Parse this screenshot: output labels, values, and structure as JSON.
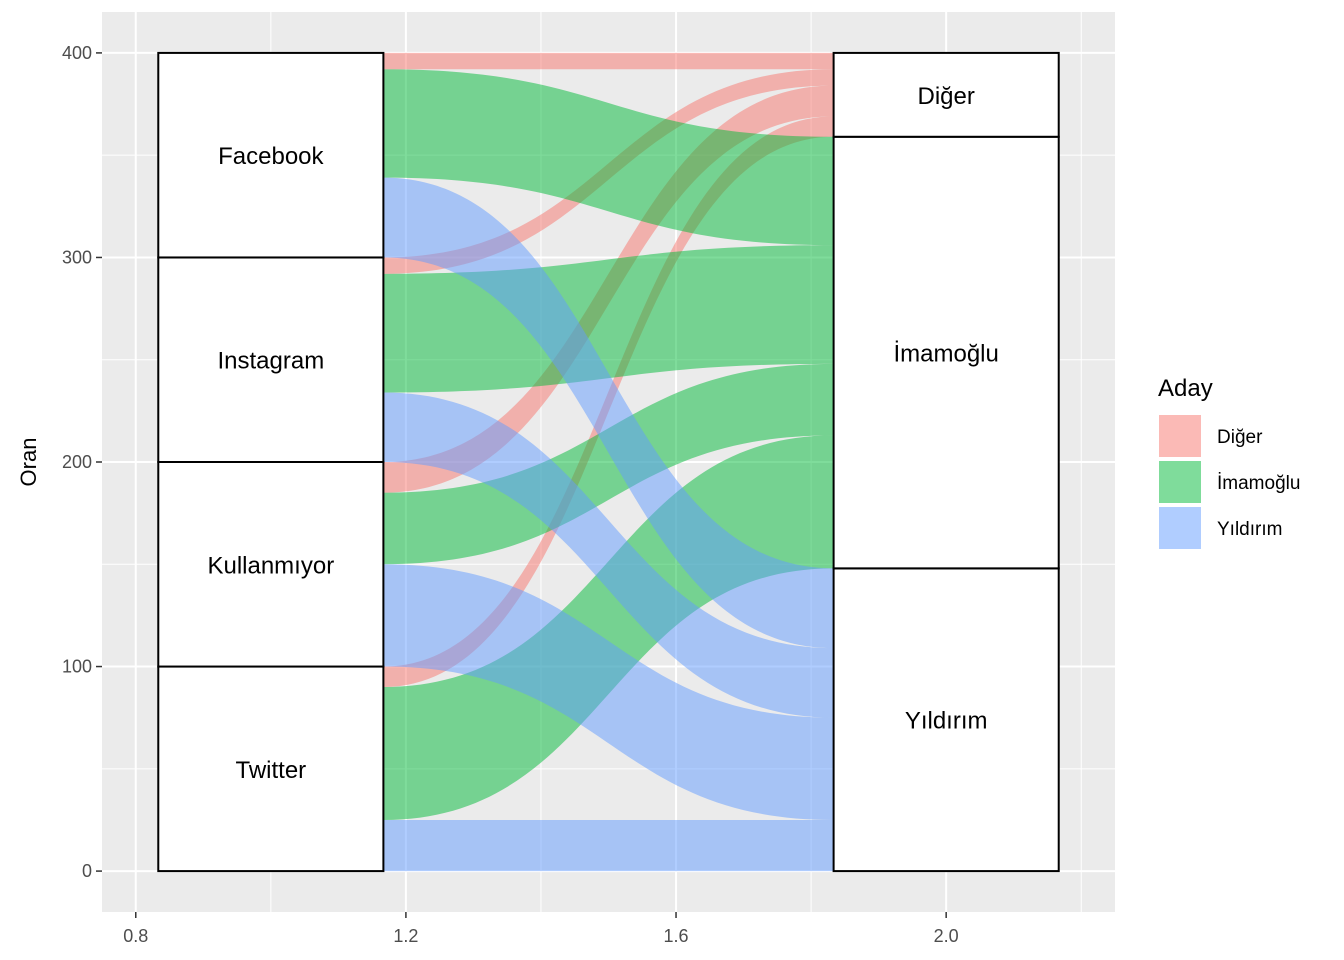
{
  "chart_data": {
    "type": "alluvial",
    "ylabel": "Oran",
    "xlabel": "",
    "xlim": [
      0.75,
      2.25
    ],
    "ylim": [
      -20,
      420
    ],
    "x_ticks": [
      0.8,
      1.2,
      1.6,
      2.0
    ],
    "x_tick_labels": [
      "0.8",
      "1.2",
      "1.6",
      "2.0"
    ],
    "y_ticks": [
      0,
      100,
      200,
      300,
      400
    ],
    "y_tick_labels": [
      "0",
      "100",
      "200",
      "300",
      "400"
    ],
    "axis1": {
      "x": 1,
      "strata": [
        "Twitter",
        "Kullanmıyor",
        "Instagram",
        "Facebook"
      ]
    },
    "axis2": {
      "x": 2,
      "strata": [
        "Yıldırım",
        "İmamoğlu",
        "Diğer"
      ]
    },
    "flows": [
      {
        "from": "Twitter",
        "to": "Yıldırım",
        "value": 25
      },
      {
        "from": "Twitter",
        "to": "İmamoğlu",
        "value": 65
      },
      {
        "from": "Twitter",
        "to": "Diğer",
        "value": 10
      },
      {
        "from": "Kullanmıyor",
        "to": "Yıldırım",
        "value": 50
      },
      {
        "from": "Kullanmıyor",
        "to": "İmamoğlu",
        "value": 35
      },
      {
        "from": "Kullanmıyor",
        "to": "Diğer",
        "value": 15
      },
      {
        "from": "Instagram",
        "to": "Yıldırım",
        "value": 34
      },
      {
        "from": "Instagram",
        "to": "İmamoğlu",
        "value": 58
      },
      {
        "from": "Instagram",
        "to": "Diğer",
        "value": 8
      },
      {
        "from": "Facebook",
        "to": "Yıldırım",
        "value": 39
      },
      {
        "from": "Facebook",
        "to": "İmamoğlu",
        "value": 53
      },
      {
        "from": "Facebook",
        "to": "Diğer",
        "value": 8
      }
    ],
    "legend": {
      "title": "Aday",
      "position": "right",
      "entries": [
        {
          "label": "Diğer",
          "color": "#F8766D"
        },
        {
          "label": "İmamoğlu",
          "color": "#00BA38"
        },
        {
          "label": "Yıldırım",
          "color": "#619CFF"
        }
      ]
    },
    "flow_opacity": 0.5,
    "panel_background": "#EBEBEB",
    "grid_color": "#FFFFFF"
  }
}
